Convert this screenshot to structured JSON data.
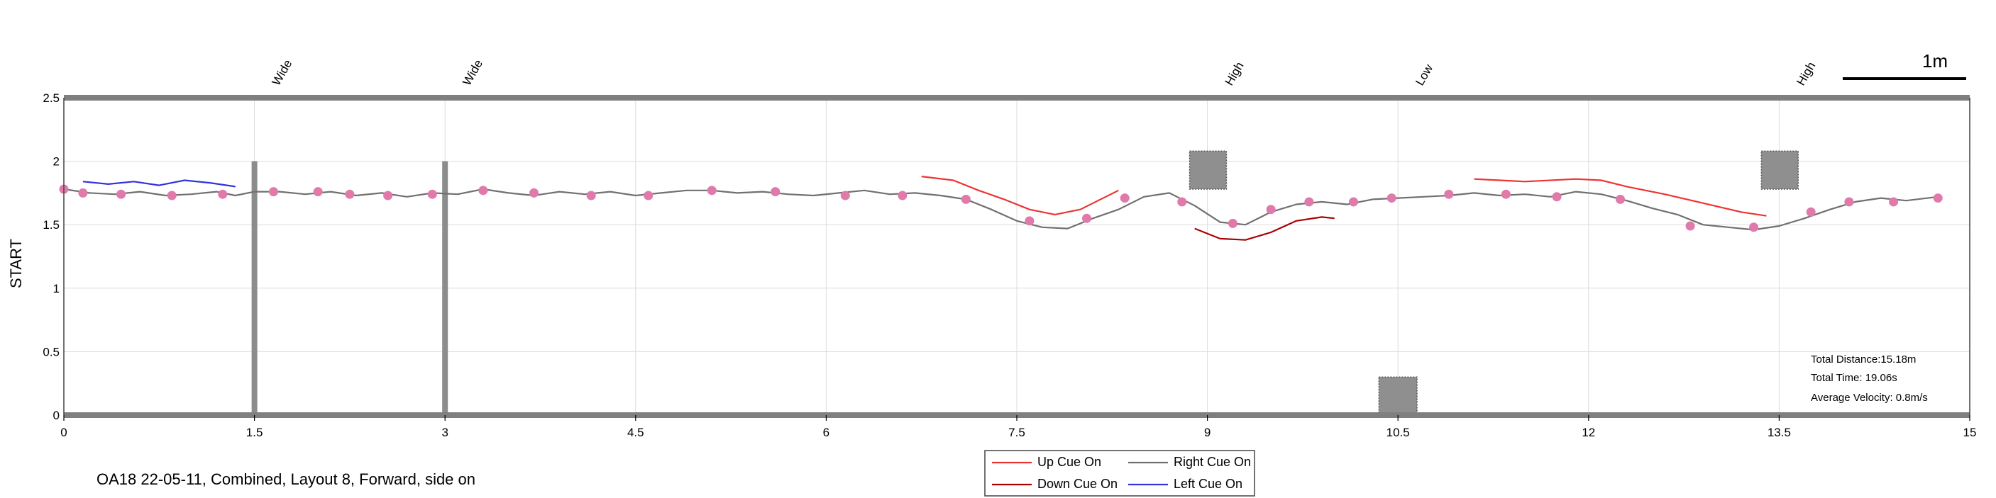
{
  "caption": "OA18 22-05-11, Combined, Layout 8, Forward, side on",
  "scale_bar_label": "1m",
  "stats": {
    "total_distance": "Total Distance:15.18m",
    "total_time": "Total Time: 19.06s",
    "average_velocity": "Average Velocity: 0.8m/s"
  },
  "legend": [
    {
      "label": "Up Cue On",
      "color": "#ee3333"
    },
    {
      "label": "Right Cue On",
      "color": "#707070"
    },
    {
      "label": "Down Cue On",
      "color": "#aa0000"
    },
    {
      "label": "Left Cue On",
      "color": "#3333dd"
    }
  ],
  "chart_data": {
    "type": "line",
    "ylabel": "START",
    "xlim": [
      0,
      15
    ],
    "ylim": [
      0,
      2.5
    ],
    "xticks": [
      0,
      1.5,
      3,
      4.5,
      6,
      7.5,
      9,
      10.5,
      12,
      13.5,
      15
    ],
    "xtick_labels": [
      "0",
      "1.5",
      "3",
      "4.5",
      "6",
      "7.5",
      "9",
      "10.5",
      "12",
      "13.5",
      "15"
    ],
    "yticks": [
      0,
      0.5,
      1,
      1.5,
      2,
      2.5
    ],
    "ytick_labels": [
      "0",
      "0.5",
      "1",
      "1.5",
      "2",
      "2.5"
    ],
    "grid": true,
    "cue_labels": [
      {
        "x": 1.5,
        "text": "Wide"
      },
      {
        "x": 3.0,
        "text": "Wide"
      },
      {
        "x": 9.0,
        "text": "High"
      },
      {
        "x": 10.5,
        "text": "Low"
      },
      {
        "x": 13.5,
        "text": "High"
      }
    ],
    "barriers": [
      {
        "x": 1.5,
        "y0": 0,
        "y1": 2.0
      },
      {
        "x": 3.0,
        "y0": 0,
        "y1": 2.0
      }
    ],
    "obstacles": [
      {
        "x0": 8.86,
        "x1": 9.15,
        "y0": 1.78,
        "y1": 2.08
      },
      {
        "x0": 10.35,
        "x1": 10.65,
        "y0": 0.0,
        "y1": 0.3
      },
      {
        "x0": 13.36,
        "x1": 13.65,
        "y0": 1.78,
        "y1": 2.08
      }
    ],
    "series": [
      {
        "name": "Right Cue On",
        "color": "#707070",
        "x": [
          0,
          0.2,
          0.4,
          0.6,
          0.8,
          1.0,
          1.2,
          1.35,
          1.5,
          1.7,
          1.9,
          2.1,
          2.3,
          2.5,
          2.7,
          2.9,
          3.1,
          3.3,
          3.5,
          3.7,
          3.9,
          4.1,
          4.3,
          4.5,
          4.7,
          4.9,
          5.1,
          5.3,
          5.5,
          5.7,
          5.9,
          6.1,
          6.3,
          6.5,
          6.7,
          6.9,
          7.1,
          7.3,
          7.5,
          7.7,
          7.9,
          8.1,
          8.3,
          8.5,
          8.7,
          8.9,
          9.1,
          9.3,
          9.5,
          9.7,
          9.9,
          10.1,
          10.3,
          10.5,
          10.7,
          10.9,
          11.1,
          11.3,
          11.5,
          11.7,
          11.9,
          12.1,
          12.3,
          12.5,
          12.7,
          12.9,
          13.1,
          13.3,
          13.5,
          13.7,
          13.9,
          14.1,
          14.3,
          14.5,
          14.75
        ],
        "y": [
          1.78,
          1.75,
          1.74,
          1.76,
          1.73,
          1.74,
          1.76,
          1.73,
          1.76,
          1.76,
          1.74,
          1.76,
          1.73,
          1.75,
          1.72,
          1.75,
          1.74,
          1.78,
          1.75,
          1.73,
          1.76,
          1.74,
          1.76,
          1.73,
          1.75,
          1.77,
          1.77,
          1.75,
          1.76,
          1.74,
          1.73,
          1.75,
          1.77,
          1.74,
          1.75,
          1.73,
          1.7,
          1.62,
          1.53,
          1.48,
          1.47,
          1.55,
          1.62,
          1.72,
          1.75,
          1.65,
          1.52,
          1.5,
          1.6,
          1.66,
          1.68,
          1.66,
          1.7,
          1.71,
          1.72,
          1.73,
          1.75,
          1.73,
          1.74,
          1.72,
          1.76,
          1.74,
          1.69,
          1.63,
          1.58,
          1.5,
          1.48,
          1.46,
          1.49,
          1.55,
          1.62,
          1.68,
          1.71,
          1.69,
          1.72
        ]
      },
      {
        "name": "Left Cue On",
        "color": "#3333dd",
        "x": [
          0.15,
          0.35,
          0.55,
          0.75,
          0.95,
          1.15,
          1.35
        ],
        "y": [
          1.84,
          1.82,
          1.84,
          1.81,
          1.85,
          1.83,
          1.8
        ]
      },
      {
        "name": "Up Cue On",
        "color": "#ee3333",
        "x": [
          6.75,
          7.0,
          7.2,
          7.4,
          7.6,
          7.8,
          8.0,
          8.2,
          8.3,
          11.1,
          11.3,
          11.5,
          11.9,
          12.1,
          12.3,
          12.6,
          12.9,
          13.2,
          13.4
        ],
        "y": [
          1.88,
          1.85,
          1.77,
          1.7,
          1.62,
          1.58,
          1.62,
          1.72,
          1.77,
          1.86,
          1.85,
          1.84,
          1.86,
          1.85,
          1.8,
          1.74,
          1.67,
          1.6,
          1.57
        ]
      },
      {
        "name": "Down Cue On",
        "color": "#aa0000",
        "x": [
          8.9,
          9.1,
          9.3,
          9.5,
          9.7,
          9.9,
          10.0
        ],
        "y": [
          1.47,
          1.39,
          1.38,
          1.44,
          1.53,
          1.56,
          1.55
        ]
      }
    ],
    "markers": {
      "color": "#e07aaa",
      "x": [
        0,
        0.15,
        0.45,
        0.85,
        1.25,
        1.65,
        2.0,
        2.25,
        2.55,
        2.9,
        3.3,
        3.7,
        4.15,
        4.6,
        5.1,
        5.6,
        6.15,
        6.6,
        7.1,
        7.6,
        8.05,
        8.35,
        8.8,
        9.2,
        9.5,
        9.8,
        10.15,
        10.45,
        10.9,
        11.35,
        11.75,
        12.25,
        12.8,
        13.3,
        13.75,
        14.05,
        14.4,
        14.75
      ],
      "y": [
        1.78,
        1.75,
        1.74,
        1.73,
        1.74,
        1.76,
        1.76,
        1.74,
        1.73,
        1.74,
        1.77,
        1.75,
        1.73,
        1.73,
        1.77,
        1.76,
        1.73,
        1.73,
        1.7,
        1.53,
        1.55,
        1.71,
        1.68,
        1.51,
        1.62,
        1.68,
        1.68,
        1.71,
        1.74,
        1.74,
        1.72,
        1.7,
        1.49,
        1.48,
        1.6,
        1.68,
        1.68,
        1.71
      ]
    }
  }
}
